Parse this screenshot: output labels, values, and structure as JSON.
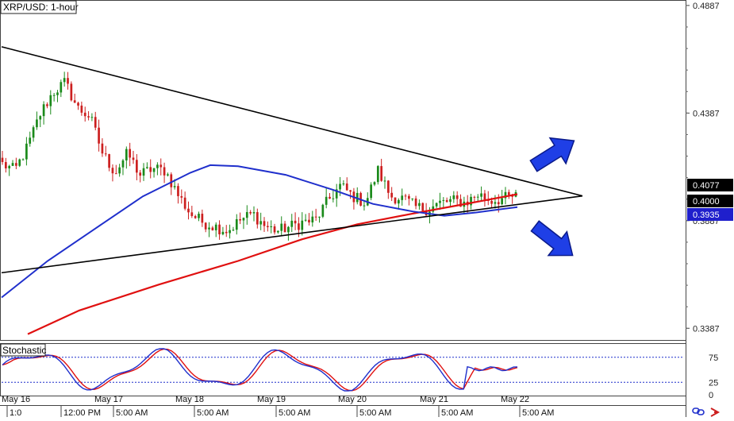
{
  "app": {
    "title": "XRP/USD: 1-hour"
  },
  "main_chart": {
    "label": "XRP/USD: 1-hour"
  },
  "sub_chart": {
    "label": "Stochastic"
  },
  "price_axis": {
    "ticks": [
      "0.4887",
      "0.4387",
      "0.3887",
      "0.3387"
    ]
  },
  "price_tags": [
    {
      "text": "0.4077",
      "value": 0.4077,
      "bg": "#000000",
      "fg": "#ffffff"
    },
    {
      "text": "0.4000",
      "value": 0.4,
      "bg": "#000000",
      "fg": "#ffffff"
    },
    {
      "text": "0.3935",
      "value": 0.3935,
      "bg": "#1f1fcc",
      "fg": "#ffffff"
    }
  ],
  "stoch_axis": {
    "ticks": [
      "75",
      "25",
      "0"
    ]
  },
  "date_labels": [
    "May 16",
    "May 17",
    "May 18",
    "May 19",
    "May 20",
    "May 21",
    "May 22"
  ],
  "time_labels": [
    "1:0",
    "12:00 PM",
    "5:00 AM",
    "5:00 AM",
    "5:00 AM",
    "5:00 AM",
    "5:00 AM",
    "5:00 AM"
  ],
  "colors": {
    "up_candle": "#1a8a1a",
    "down_candle": "#cc1f1f",
    "ma_fast": "#e01010",
    "ma_slow": "#1f2fcc",
    "trendline": "#000000",
    "arrow": "#1f3fe6",
    "stoch_k": "#1f2fcc",
    "stoch_d": "#e01010",
    "stoch_level": "#1f2fcc"
  },
  "icons": {
    "bottom_right": [
      "link-icon",
      "arrow-icon"
    ]
  },
  "chart_data": {
    "type": "candlestick",
    "title": "XRP/USD: 1-hour",
    "y_range": [
      0.334,
      0.4905
    ],
    "pattern": "symmetrical triangle",
    "annotations": [
      "upward breakout arrow",
      "downward breakout arrow"
    ],
    "price_series_anchor_closes": [
      0.415,
      0.412,
      0.423,
      0.438,
      0.448,
      0.453,
      0.441,
      0.437,
      0.42,
      0.411,
      0.42,
      0.41,
      0.413,
      0.412,
      0.401,
      0.392,
      0.388,
      0.386,
      0.384,
      0.389,
      0.392,
      0.386,
      0.384,
      0.386,
      0.388,
      0.389,
      0.398,
      0.405,
      0.4,
      0.397,
      0.412,
      0.4,
      0.399,
      0.395,
      0.394,
      0.397,
      0.398,
      0.397,
      0.401,
      0.398,
      0.399,
      0.4
    ],
    "trendlines": [
      {
        "name": "upper",
        "from": {
          "x_date": "May 16",
          "y": 0.4695
        },
        "to": {
          "x_date": "May 22",
          "y": 0.4002
        }
      },
      {
        "name": "lower",
        "from": {
          "x_date": "May 16",
          "y": 0.3645
        },
        "to": {
          "x_date": "May 22",
          "y": 0.4002
        }
      }
    ],
    "stochastic": {
      "levels": [
        75,
        25
      ],
      "range": [
        0,
        100
      ]
    }
  }
}
